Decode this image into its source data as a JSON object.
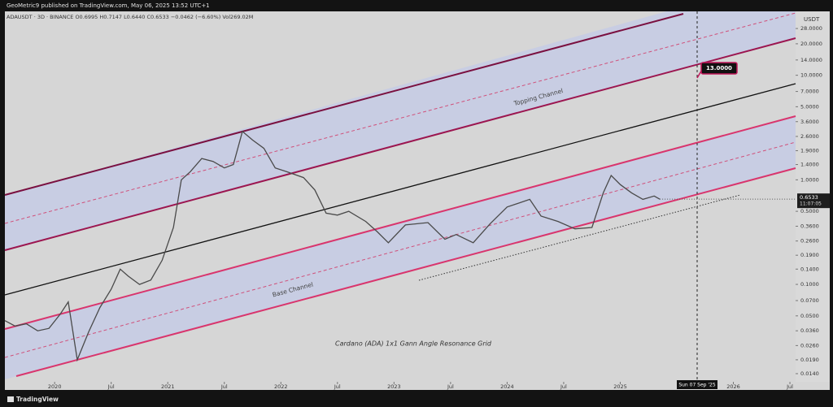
{
  "header": {
    "published": "GeoMetric9 published on TradingView.com, May 06, 2025 13:52 UTC+1",
    "symbol": "ADAUSDT · 3D · BINANCE  O0.6995  H0.7147  L0.6440  C0.6533  −0.0462 (−6.60%)  Vol269.02M"
  },
  "footer": {
    "brand": "TradingView"
  },
  "chart_data": {
    "type": "line",
    "log_scale": true,
    "color": "#4a4a4a",
    "y_unit": "USDT",
    "x": [
      2019.56,
      2019.65,
      2019.75,
      2019.85,
      2019.95,
      2020.05,
      2020.12,
      2020.2,
      2020.3,
      2020.4,
      2020.5,
      2020.58,
      2020.65,
      2020.75,
      2020.85,
      2020.95,
      2021.05,
      2021.12,
      2021.2,
      2021.3,
      2021.4,
      2021.5,
      2021.58,
      2021.66,
      2021.75,
      2021.85,
      2021.95,
      2022.05,
      2022.2,
      2022.3,
      2022.4,
      2022.5,
      2022.6,
      2022.75,
      2022.85,
      2022.95,
      2023.1,
      2023.3,
      2023.45,
      2023.55,
      2023.7,
      2023.85,
      2024.0,
      2024.2,
      2024.3,
      2024.45,
      2024.6,
      2024.75,
      2024.85,
      2024.92,
      2025.0,
      2025.1,
      2025.2,
      2025.3,
      2025.35
    ],
    "values": [
      0.045,
      0.04,
      0.042,
      0.036,
      0.038,
      0.052,
      0.068,
      0.019,
      0.035,
      0.06,
      0.09,
      0.14,
      0.12,
      0.1,
      0.11,
      0.17,
      0.35,
      1.0,
      1.2,
      1.6,
      1.5,
      1.3,
      1.4,
      2.9,
      2.4,
      2.0,
      1.3,
      1.2,
      1.05,
      0.8,
      0.48,
      0.46,
      0.5,
      0.4,
      0.32,
      0.25,
      0.37,
      0.39,
      0.27,
      0.3,
      0.25,
      0.38,
      0.55,
      0.65,
      0.45,
      0.4,
      0.34,
      0.35,
      0.75,
      1.1,
      0.9,
      0.75,
      0.65,
      0.7,
      0.6533
    ],
    "xlim": [
      2019.56,
      2026.55
    ],
    "xticks": [
      2020,
      {
        "value": 2020.5,
        "label": "Jul"
      },
      2021,
      {
        "value": 2021.5,
        "label": "Jul"
      },
      2022,
      {
        "value": 2022.5,
        "label": "Jul"
      },
      2023,
      {
        "value": 2023.5,
        "label": "Jul"
      },
      2024,
      {
        "value": 2024.5,
        "label": "Jul"
      },
      2025,
      2026,
      {
        "value": 2026.5,
        "label": "Jul"
      }
    ],
    "ylim": [
      0.0117,
      39.4
    ],
    "yticks": [
      {
        "value": 0.014,
        "label": "0.0140"
      },
      {
        "value": 0.019,
        "label": "0.0190"
      },
      {
        "value": 0.026,
        "label": "0.0260"
      },
      {
        "value": 0.036,
        "label": "0.0360"
      },
      {
        "value": 0.05,
        "label": "0.0500"
      },
      {
        "value": 0.07,
        "label": "0.0700"
      },
      {
        "value": 0.1,
        "label": "0.1000"
      },
      {
        "value": 0.14,
        "label": "0.1400"
      },
      {
        "value": 0.19,
        "label": "0.1900"
      },
      {
        "value": 0.26,
        "label": "0.2600"
      },
      {
        "value": 0.36,
        "label": "0.3600"
      },
      {
        "value": 0.5,
        "label": "0.5000"
      },
      {
        "value": 1,
        "label": "1.0000"
      },
      {
        "value": 1.4,
        "label": "1.4000"
      },
      {
        "value": 1.9,
        "label": "1.9000"
      },
      {
        "value": 2.6,
        "label": "2.6000"
      },
      {
        "value": 3.6,
        "label": "3.6000"
      },
      {
        "value": 5,
        "label": "5.0000"
      },
      {
        "value": 7,
        "label": "7.0000"
      },
      {
        "value": 10,
        "label": "10.0000"
      },
      {
        "value": 14,
        "label": "14.0000"
      },
      {
        "value": 20,
        "label": "20.0000"
      },
      {
        "value": 28,
        "label": "28.0000"
      }
    ],
    "last_price": {
      "value": 0.6533,
      "label": "0.6533"
    },
    "countdown": "11:07:05",
    "target": {
      "value": 13,
      "label": "13.0000"
    },
    "crosshair_label": "Sun 07 Sep '25",
    "annotations": [
      "Topping Channel",
      "Base Channel",
      "Cardano (ADA) 1x1 Gann Angle Resonance Grid"
    ]
  }
}
